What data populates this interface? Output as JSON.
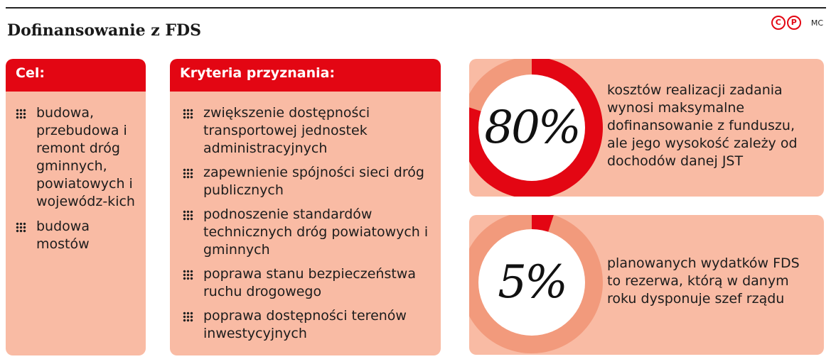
{
  "title": "Dofinansowanie z FDS",
  "brand": {
    "logo_letters": [
      "C",
      "P"
    ],
    "author": "MC"
  },
  "cel": {
    "header": "Cel:",
    "items": [
      "budowa, przebudowa i remont dróg gminnych, powiatowych i wojewódz-kich",
      "budowa mostów"
    ]
  },
  "kryteria": {
    "header": "Kryteria przyznania:",
    "items": [
      "zwiększenie dostępności transportowej jednostek administracyjnych",
      "zapewnienie spójności sieci dróg publicznych",
      "podnoszenie standardów technicznych dróg powiatowych i gminnych",
      "poprawa stanu bezpieczeństwa ruchu drogowego",
      "poprawa dostępności terenów inwestycyjnych"
    ]
  },
  "chart_data": [
    {
      "type": "pie",
      "value_percent": 80,
      "label": "80%",
      "description": "kosztów realizacji zadania wynosi maksymalne dofinansowanie z funduszu, ale jego wysokość zależy od dochodów danej JST"
    },
    {
      "type": "pie",
      "value_percent": 5,
      "label": "5%",
      "description": "planowanych wydatków FDS to rezerwa, którą w danym roku dysponuje szef rządu"
    }
  ],
  "colors": {
    "accent": "#e30613",
    "panel": "#f9bba4",
    "ring_background": "#f29a7c",
    "text": "#1c1c1c"
  }
}
